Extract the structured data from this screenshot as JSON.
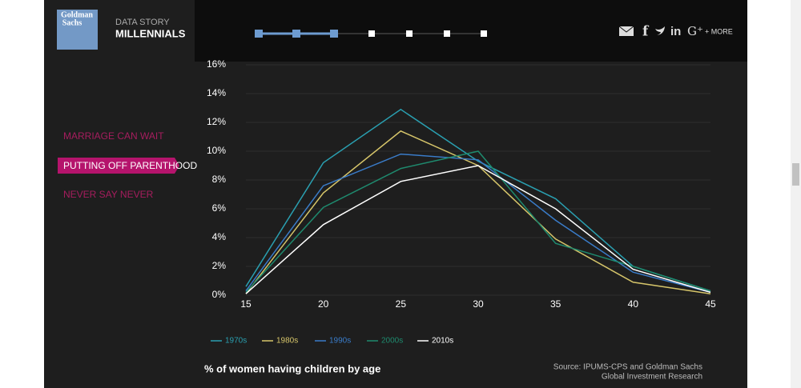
{
  "header": {
    "logo": [
      "Goldman",
      "Sachs"
    ],
    "kicker": "DATA STORY",
    "title": "MILLENNIALS",
    "more": "+ MORE"
  },
  "nav": [
    "MARRIAGE CAN WAIT",
    "PUTTING OFF PARENTHOOD",
    "NEVER SAY NEVER"
  ],
  "chart_data": {
    "type": "line",
    "title": "% of women having children by age",
    "source": [
      "Source: IPUMS-CPS and Goldman Sachs",
      "Global Investment Research"
    ],
    "x": [
      15,
      20,
      25,
      30,
      35,
      40,
      45
    ],
    "xlim": [
      15,
      45
    ],
    "xticks": [
      15,
      20,
      25,
      30,
      35,
      40,
      45
    ],
    "ylim": [
      0,
      16
    ],
    "yticks": [
      {
        "value": 0,
        "label": "0%"
      },
      {
        "value": 2,
        "label": "2%"
      },
      {
        "value": 4,
        "label": "4%"
      },
      {
        "value": 6,
        "label": "6%"
      },
      {
        "value": 8,
        "label": "8%"
      },
      {
        "value": 10,
        "label": "10%"
      },
      {
        "value": 12,
        "label": "12%"
      },
      {
        "value": 14,
        "label": "14%"
      },
      {
        "value": 16,
        "label": "16%"
      }
    ],
    "grid": true,
    "series": [
      {
        "name": "1970s",
        "color": "#2a9fb0",
        "values": [
          0.6,
          9.2,
          12.9,
          9.3,
          6.7,
          2.0,
          0.3
        ]
      },
      {
        "name": "1980s",
        "color": "#d6c56a",
        "values": [
          0.1,
          7.1,
          11.4,
          9.0,
          3.9,
          0.9,
          0.1
        ]
      },
      {
        "name": "1990s",
        "color": "#3a7cc9",
        "values": [
          0.3,
          7.6,
          9.8,
          9.4,
          5.2,
          1.6,
          0.2
        ]
      },
      {
        "name": "2000s",
        "color": "#1e8a6e",
        "values": [
          0.2,
          6.1,
          8.8,
          10.0,
          3.6,
          2.0,
          0.3
        ]
      },
      {
        "name": "2010s",
        "color": "#ffffff",
        "values": [
          0.1,
          4.9,
          7.9,
          9.0,
          6.0,
          1.8,
          0.2
        ]
      }
    ]
  }
}
